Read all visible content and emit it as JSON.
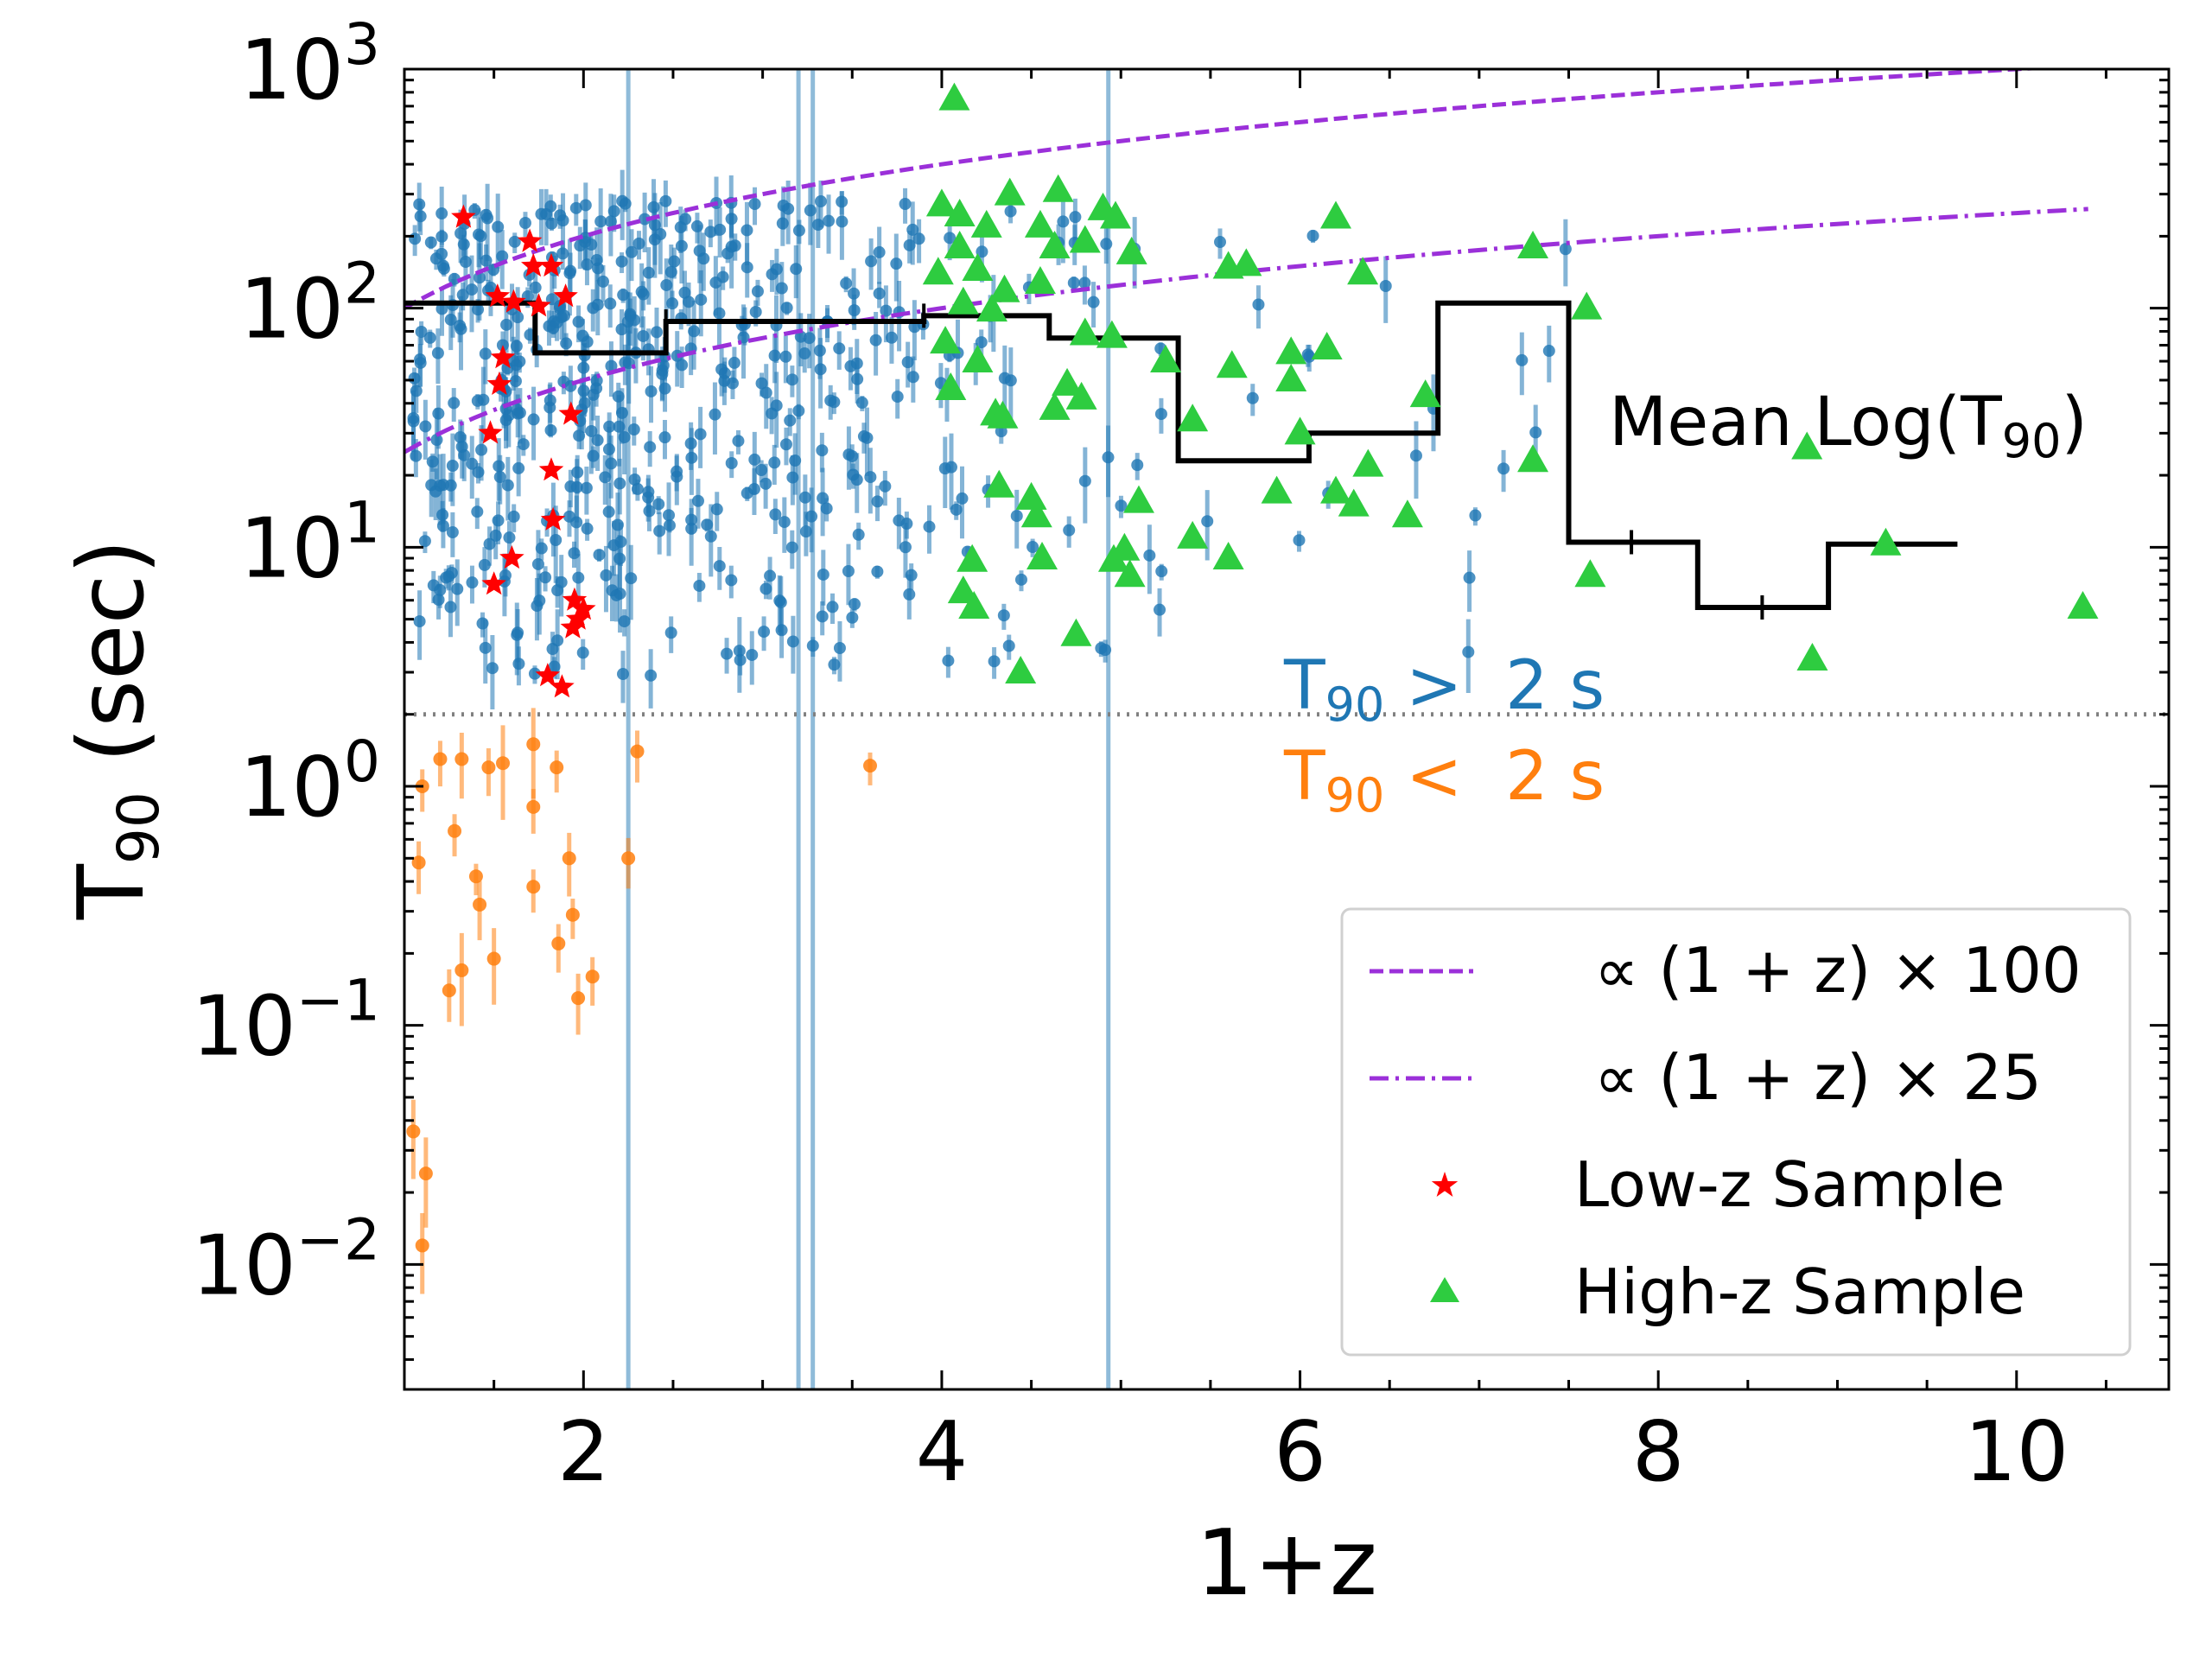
{
  "chart_data": {
    "type": "scatter",
    "title": "",
    "xlabel": "1+z",
    "ylabel": {
      "main": "T",
      "sub": "90",
      "suffix": " (sec)"
    },
    "x_scale": "linear",
    "y_scale": "log",
    "xlim": [
      1.0,
      10.85
    ],
    "ylim": [
      0.003,
      1000
    ],
    "x_ticks": [
      2,
      4,
      6,
      8,
      10
    ],
    "y_ticks": [
      {
        "value": 0.01,
        "base": "10",
        "exp": "−2"
      },
      {
        "value": 0.1,
        "base": "10",
        "exp": "−1"
      },
      {
        "value": 1,
        "base": "10",
        "exp": "0"
      },
      {
        "value": 10,
        "base": "10",
        "exp": "1"
      },
      {
        "value": 100,
        "base": "10",
        "exp": "2"
      },
      {
        "value": 1000,
        "base": "10",
        "exp": "3"
      }
    ],
    "grid": false,
    "legend_position": "bottom-right",
    "colors": {
      "long": "#1f77b4",
      "short": "#ff7f0e",
      "low_z": "#ff0000",
      "high_z": "#2ecc40",
      "model": "#9b30d9",
      "mean": "#000000",
      "threshold": "#808080"
    },
    "threshold": {
      "y": 2
    },
    "annotations": {
      "long_label": {
        "main": "T",
        "sub": "90",
        "rest": " >  2 s"
      },
      "short_label": {
        "main": "T",
        "sub": "90",
        "rest": " <  2 s"
      },
      "mean_label": {
        "main": "Mean Log(T",
        "sub": "90",
        "rest": ")"
      }
    },
    "legend": [
      {
        "label": "∝ (1 + z) × 100",
        "style": "dashed"
      },
      {
        "label": "∝ (1 + z) × 25",
        "style": "dashdot"
      },
      {
        "label": "Low-z Sample",
        "style": "star"
      },
      {
        "label": "High-z Sample",
        "style": "triangle"
      }
    ],
    "models": [
      {
        "name": "∝ (1 + z) × 100",
        "factor": 100,
        "x_range": [
          1.0,
          10.4
        ],
        "style": "dashed"
      },
      {
        "name": "∝ (1 + z) × 25",
        "factor": 25,
        "x_range": [
          1.0,
          10.4
        ],
        "style": "dashdot"
      }
    ],
    "mean_log_t90": {
      "edges": [
        1.0,
        1.73,
        2.46,
        3.9,
        4.6,
        5.32,
        6.05,
        6.77,
        7.5,
        8.22,
        8.95,
        9.67
      ],
      "values": [
        105,
        65,
        88,
        93,
        75,
        23,
        30,
        105,
        10.5,
        5.6,
        10.3
      ]
    },
    "series": [
      {
        "name": "Low-z Sample",
        "points": [
          [
            1.33,
            240
          ],
          [
            1.7,
            190
          ],
          [
            1.72,
            150
          ],
          [
            1.82,
            150
          ],
          [
            1.9,
            112
          ],
          [
            1.52,
            112
          ],
          [
            1.61,
            106
          ],
          [
            1.75,
            102
          ],
          [
            1.55,
            62
          ],
          [
            1.53,
            48
          ],
          [
            1.93,
            36
          ],
          [
            1.48,
            30
          ],
          [
            1.82,
            21
          ],
          [
            1.83,
            13
          ],
          [
            1.6,
            9
          ],
          [
            1.5,
            7
          ],
          [
            1.95,
            6
          ],
          [
            2.0,
            5.5
          ],
          [
            1.97,
            5
          ],
          [
            1.94,
            4.6
          ],
          [
            1.8,
            2.9
          ],
          [
            1.88,
            2.6
          ]
        ]
      },
      {
        "name": "High-z Sample",
        "points": [
          [
            4.07,
            750
          ],
          [
            4.0,
            270
          ],
          [
            4.1,
            245
          ],
          [
            4.25,
            220
          ],
          [
            4.38,
            300
          ],
          [
            4.65,
            310
          ],
          [
            4.9,
            260
          ],
          [
            4.97,
            240
          ],
          [
            4.8,
            190
          ],
          [
            6.2,
            240
          ],
          [
            4.55,
            220
          ],
          [
            4.63,
            180
          ],
          [
            4.1,
            180
          ],
          [
            5.06,
            170
          ],
          [
            4.2,
            145
          ],
          [
            3.98,
            140
          ],
          [
            4.35,
            118
          ],
          [
            4.55,
            128
          ],
          [
            5.6,
            148
          ],
          [
            5.7,
            152
          ],
          [
            6.35,
            140
          ],
          [
            7.3,
            180
          ],
          [
            4.12,
            105
          ],
          [
            4.28,
            98
          ],
          [
            7.6,
            100
          ],
          [
            4.8,
            78
          ],
          [
            4.95,
            76
          ],
          [
            4.02,
            72
          ],
          [
            4.2,
            60
          ],
          [
            5.25,
            60
          ],
          [
            5.95,
            65
          ],
          [
            6.15,
            68
          ],
          [
            5.62,
            57
          ],
          [
            5.95,
            50
          ],
          [
            4.05,
            46
          ],
          [
            4.7,
            48
          ],
          [
            4.78,
            42
          ],
          [
            4.63,
            38
          ],
          [
            4.3,
            36
          ],
          [
            4.34,
            35
          ],
          [
            5.4,
            34
          ],
          [
            6.0,
            30
          ],
          [
            6.7,
            43
          ],
          [
            8.83,
            26
          ],
          [
            7.3,
            23
          ],
          [
            6.38,
            22
          ],
          [
            4.32,
            18
          ],
          [
            4.5,
            16
          ],
          [
            5.87,
            17
          ],
          [
            6.2,
            17
          ],
          [
            4.53,
            13.5
          ],
          [
            5.1,
            15.5
          ],
          [
            6.3,
            15
          ],
          [
            6.6,
            13.5
          ],
          [
            5.4,
            11
          ],
          [
            5.02,
            9.8
          ],
          [
            4.96,
            8.8
          ],
          [
            5.05,
            7.6
          ],
          [
            4.17,
            8.8
          ],
          [
            4.56,
            9
          ],
          [
            5.6,
            9
          ],
          [
            4.12,
            6.5
          ],
          [
            4.18,
            5.6
          ],
          [
            4.75,
            4.3
          ],
          [
            4.44,
            3
          ],
          [
            9.27,
            10.3
          ],
          [
            7.62,
            7.6
          ],
          [
            8.86,
            3.4
          ],
          [
            10.37,
            5.6
          ]
        ]
      }
    ]
  }
}
